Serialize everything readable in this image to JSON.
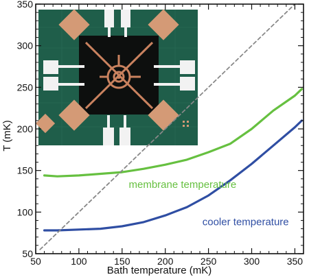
{
  "chart_data": {
    "type": "line",
    "xlabel": "Bath temperature (mK)",
    "ylabel": "T (mK)",
    "xlim": [
      50,
      360
    ],
    "ylim": [
      50,
      350
    ],
    "xticks": [
      50,
      100,
      150,
      200,
      250,
      300,
      350
    ],
    "yticks": [
      50,
      100,
      150,
      200,
      250,
      300,
      350
    ],
    "grid": false,
    "series": [
      {
        "name": "membrane temperature",
        "color": "#66c040",
        "x": [
          60,
          75,
          100,
          125,
          150,
          175,
          200,
          225,
          250,
          275,
          300,
          325,
          350,
          358
        ],
        "y": [
          144,
          143,
          144,
          146,
          148,
          152,
          157,
          163,
          172,
          182,
          200,
          222,
          240,
          248
        ]
      },
      {
        "name": "cooler temperature",
        "color": "#2f4ea3",
        "x": [
          60,
          75,
          100,
          125,
          150,
          175,
          200,
          225,
          250,
          275,
          300,
          325,
          350,
          358
        ],
        "y": [
          78,
          78,
          79,
          80,
          83,
          88,
          96,
          106,
          120,
          138,
          158,
          180,
          202,
          210
        ]
      },
      {
        "name": "",
        "style": "dashed",
        "color": "#888888",
        "x": [
          55,
          355
        ],
        "y": [
          55,
          355
        ]
      }
    ],
    "annotations": [
      {
        "text": "membrane temperature",
        "x": 220,
        "y": 129,
        "color": "#66c040"
      },
      {
        "text": "cooler temperature",
        "x": 293,
        "y": 84,
        "color": "#2f4ea3"
      }
    ],
    "inset": {
      "description_color_bg": "#1f5e4a",
      "description_color_pads": "#d49a76",
      "description_color_center": "#111111"
    }
  }
}
